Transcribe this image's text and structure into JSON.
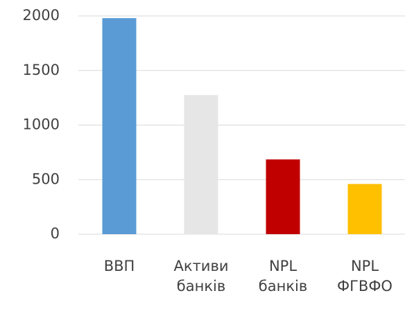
{
  "chart_data": {
    "type": "bar",
    "categories": [
      "ВВП",
      "Активи банків",
      "NPL банків",
      "NPL ФГВФО"
    ],
    "values": [
      1980,
      1275,
      685,
      460
    ],
    "colors": [
      "#5b9bd5",
      "#e7e6e6",
      "#c00000",
      "#ffc000"
    ],
    "ylim": [
      0,
      2000
    ],
    "yticks": [
      0,
      500,
      1000,
      1500,
      2000
    ],
    "grid": true
  }
}
